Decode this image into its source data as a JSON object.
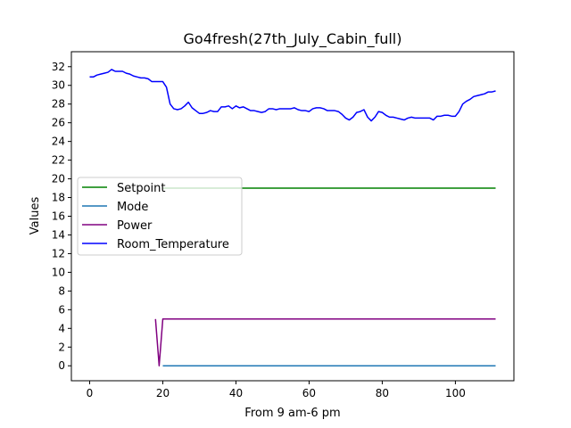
{
  "chart_data": {
    "type": "line",
    "title": "Go4fresh(27th_July_Cabin_full)",
    "xlabel": "From 9 am-6 pm",
    "ylabel": "Values",
    "xlim": [
      -5,
      116
    ],
    "ylim": [
      -1.6,
      33.6
    ],
    "xticks": [
      0,
      20,
      40,
      60,
      80,
      100
    ],
    "yticks": [
      0,
      2,
      4,
      6,
      8,
      10,
      12,
      14,
      16,
      18,
      20,
      22,
      24,
      26,
      28,
      30,
      32
    ],
    "grid": false,
    "legend_position": "center-left",
    "series": [
      {
        "name": "Setpoint",
        "color": "#008000",
        "x": [
          20,
          111
        ],
        "y": [
          19,
          19
        ]
      },
      {
        "name": "Mode",
        "color": "#1f77b4",
        "x": [
          20,
          111
        ],
        "y": [
          0,
          0
        ]
      },
      {
        "name": "Power",
        "color": "#800080",
        "x": [
          18,
          19,
          20,
          111
        ],
        "y": [
          5,
          0,
          5,
          5
        ]
      },
      {
        "name": "Room_Temperature",
        "color": "#0000ff",
        "x": [
          0,
          1,
          2,
          3,
          4,
          5,
          6,
          7,
          8,
          9,
          10,
          11,
          12,
          13,
          14,
          15,
          16,
          17,
          18,
          19,
          20,
          21,
          22,
          23,
          24,
          25,
          26,
          27,
          28,
          29,
          30,
          31,
          32,
          33,
          34,
          35,
          36,
          37,
          38,
          39,
          40,
          41,
          42,
          43,
          44,
          45,
          46,
          47,
          48,
          49,
          50,
          51,
          52,
          53,
          54,
          55,
          56,
          57,
          58,
          59,
          60,
          61,
          62,
          63,
          64,
          65,
          66,
          67,
          68,
          69,
          70,
          71,
          72,
          73,
          74,
          75,
          76,
          77,
          78,
          79,
          80,
          81,
          82,
          83,
          84,
          85,
          86,
          87,
          88,
          89,
          90,
          91,
          92,
          93,
          94,
          95,
          96,
          97,
          98,
          99,
          100,
          101,
          102,
          103,
          104,
          105,
          106,
          107,
          108,
          109,
          110,
          111
        ],
        "y": [
          30.9,
          30.9,
          31.1,
          31.2,
          31.3,
          31.4,
          31.7,
          31.5,
          31.5,
          31.5,
          31.3,
          31.2,
          31.0,
          30.9,
          30.8,
          30.8,
          30.7,
          30.4,
          30.4,
          30.4,
          30.4,
          29.8,
          28.0,
          27.5,
          27.4,
          27.5,
          27.8,
          28.2,
          27.6,
          27.3,
          27.0,
          27.0,
          27.1,
          27.3,
          27.2,
          27.2,
          27.7,
          27.7,
          27.8,
          27.5,
          27.8,
          27.6,
          27.7,
          27.5,
          27.3,
          27.3,
          27.2,
          27.1,
          27.2,
          27.5,
          27.5,
          27.4,
          27.5,
          27.5,
          27.5,
          27.5,
          27.6,
          27.4,
          27.3,
          27.3,
          27.2,
          27.5,
          27.6,
          27.6,
          27.5,
          27.3,
          27.3,
          27.3,
          27.2,
          26.9,
          26.5,
          26.3,
          26.6,
          27.1,
          27.2,
          27.4,
          26.6,
          26.2,
          26.6,
          27.2,
          27.1,
          26.8,
          26.6,
          26.6,
          26.5,
          26.4,
          26.3,
          26.5,
          26.6,
          26.5,
          26.5,
          26.5,
          26.5,
          26.5,
          26.3,
          26.7,
          26.7,
          26.8,
          26.8,
          26.7,
          26.7,
          27.2,
          28.0,
          28.3,
          28.5,
          28.8,
          28.9,
          29.0,
          29.1,
          29.3,
          29.3,
          29.4
        ]
      }
    ]
  }
}
